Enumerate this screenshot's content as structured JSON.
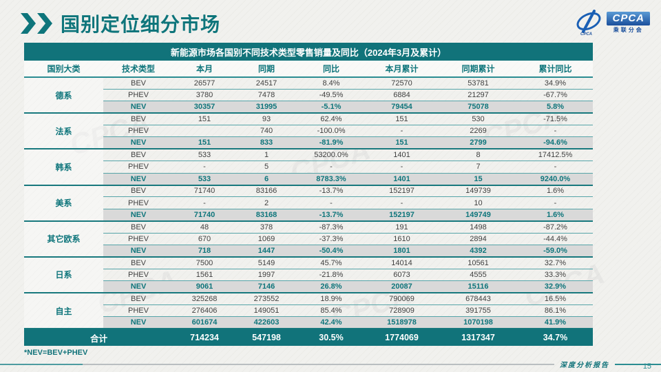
{
  "page": {
    "title": "国别定位细分市场",
    "footnote": "*NEV=BEV+PHEV",
    "footer_label": "深度分析报告",
    "page_number": "15"
  },
  "logo": {
    "text": "CPCA",
    "subtext": "乘联分会"
  },
  "colors": {
    "accent_teal": "#11737a",
    "nev_row_bg": "#d9d9d9",
    "logo_blue": "#1a4f9c"
  },
  "watermark_text": "CPCA",
  "table": {
    "title": "新能源市场各国别不同技术类型零售销量及同比（2024年3月及累计）",
    "columns": [
      "国别大类",
      "技术类型",
      "本月",
      "同期",
      "同比",
      "本月累计",
      "同期累计",
      "累计同比"
    ],
    "groups": [
      {
        "name": "德系",
        "rows": [
          [
            "BEV",
            "26577",
            "24517",
            "8.4%",
            "72570",
            "53781",
            "34.9%"
          ],
          [
            "PHEV",
            "3780",
            "7478",
            "-49.5%",
            "6884",
            "21297",
            "-67.7%"
          ],
          [
            "NEV",
            "30357",
            "31995",
            "-5.1%",
            "79454",
            "75078",
            "5.8%"
          ]
        ]
      },
      {
        "name": "法系",
        "rows": [
          [
            "BEV",
            "151",
            "93",
            "62.4%",
            "151",
            "530",
            "-71.5%"
          ],
          [
            "PHEV",
            "",
            "740",
            "-100.0%",
            "-",
            "2269",
            "-"
          ],
          [
            "NEV",
            "151",
            "833",
            "-81.9%",
            "151",
            "2799",
            "-94.6%"
          ]
        ]
      },
      {
        "name": "韩系",
        "rows": [
          [
            "BEV",
            "533",
            "1",
            "53200.0%",
            "1401",
            "8",
            "17412.5%"
          ],
          [
            "PHEV",
            "-",
            "5",
            "-",
            "-",
            "7",
            "-"
          ],
          [
            "NEV",
            "533",
            "6",
            "8783.3%",
            "1401",
            "15",
            "9240.0%"
          ]
        ]
      },
      {
        "name": "美系",
        "rows": [
          [
            "BEV",
            "71740",
            "83166",
            "-13.7%",
            "152197",
            "149739",
            "1.6%"
          ],
          [
            "PHEV",
            "-",
            "2",
            "-",
            "-",
            "10",
            "-"
          ],
          [
            "NEV",
            "71740",
            "83168",
            "-13.7%",
            "152197",
            "149749",
            "1.6%"
          ]
        ]
      },
      {
        "name": "其它欧系",
        "rows": [
          [
            "BEV",
            "48",
            "378",
            "-87.3%",
            "191",
            "1498",
            "-87.2%"
          ],
          [
            "PHEV",
            "670",
            "1069",
            "-37.3%",
            "1610",
            "2894",
            "-44.4%"
          ],
          [
            "NEV",
            "718",
            "1447",
            "-50.4%",
            "1801",
            "4392",
            "-59.0%"
          ]
        ]
      },
      {
        "name": "日系",
        "rows": [
          [
            "BEV",
            "7500",
            "5149",
            "45.7%",
            "14014",
            "10561",
            "32.7%"
          ],
          [
            "PHEV",
            "1561",
            "1997",
            "-21.8%",
            "6073",
            "4555",
            "33.3%"
          ],
          [
            "NEV",
            "9061",
            "7146",
            "26.8%",
            "20087",
            "15116",
            "32.9%"
          ]
        ]
      },
      {
        "name": "自主",
        "rows": [
          [
            "BEV",
            "325268",
            "273552",
            "18.9%",
            "790069",
            "678443",
            "16.5%"
          ],
          [
            "PHEV",
            "276406",
            "149051",
            "85.4%",
            "728909",
            "391755",
            "86.1%"
          ],
          [
            "NEV",
            "601674",
            "422603",
            "42.4%",
            "1518978",
            "1070198",
            "41.9%"
          ]
        ]
      }
    ],
    "total": {
      "label": "合计",
      "values": [
        "714234",
        "547198",
        "30.5%",
        "1774069",
        "1317347",
        "34.7%"
      ]
    }
  }
}
